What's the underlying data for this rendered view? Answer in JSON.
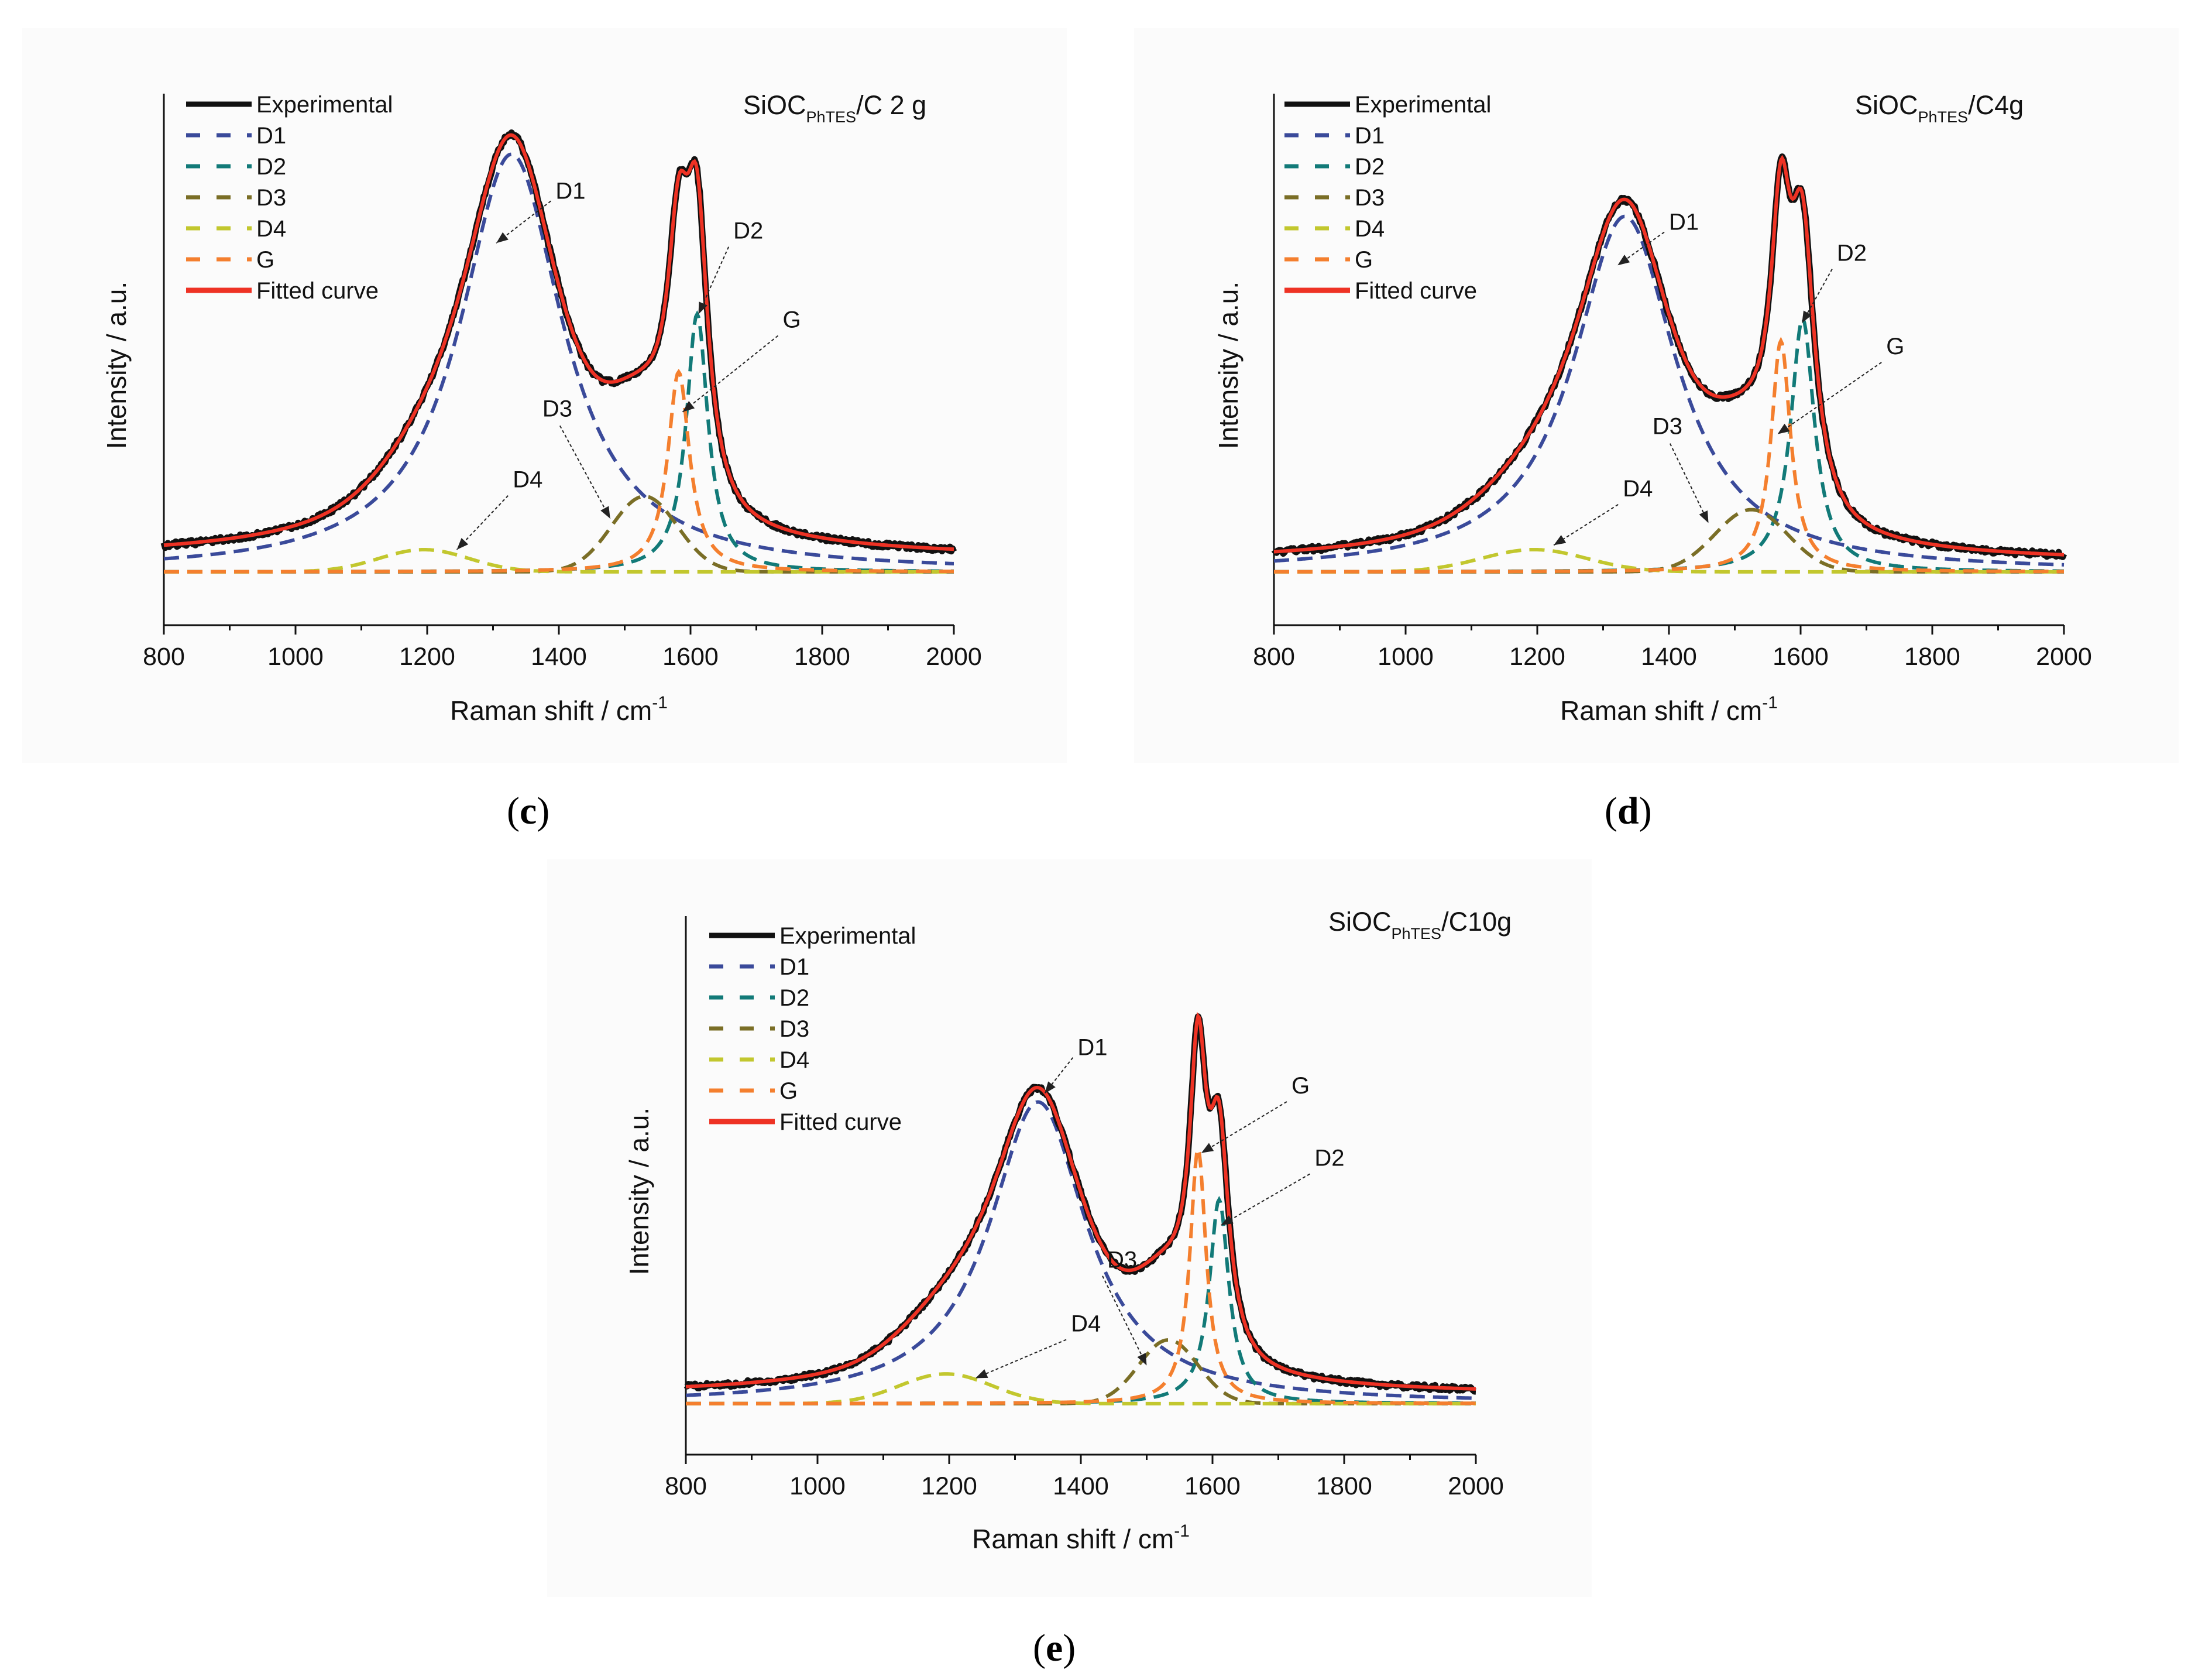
{
  "colors": {
    "Experimental": "#111111",
    "D1": "#3a4a9a",
    "D2": "#127a78",
    "D3": "#7a6e26",
    "D4": "#c2c72e",
    "G": "#f47f2e",
    "Fitted curve": "#ee3224"
  },
  "captions": {
    "c": "c",
    "d": "d",
    "e": "e"
  },
  "chart_data": [
    {
      "panel": "c",
      "type": "line",
      "title": "SiOC",
      "title_sub": "PhTES",
      "title_suffix": "/C 2 g",
      "xlabel": "Raman shift / cm",
      "xlabel_sup": "-1",
      "ylabel": "Intensity / a.u.",
      "xlim": [
        800,
        2000
      ],
      "ylim": [
        -0.12,
        1.05
      ],
      "xticks": [
        800,
        1000,
        1200,
        1400,
        1600,
        1800,
        2000
      ],
      "xtick_labels": [
        "800",
        "1000",
        "1200",
        "1400",
        "1600",
        "1800",
        "2000"
      ],
      "legend": [
        "Experimental",
        "D1",
        "D2",
        "D3",
        "D4",
        "G",
        "Fitted curve"
      ],
      "baseline_fit": 0.03,
      "baseline_comp": 0.0,
      "components": [
        {
          "name": "D1",
          "shape": "lorentz",
          "center": 1328,
          "hwhm": 95,
          "amp": 0.94
        },
        {
          "name": "D2",
          "shape": "lorentz",
          "center": 1610,
          "hwhm": 20,
          "amp": 0.58
        },
        {
          "name": "D3",
          "shape": "gauss",
          "center": 1530,
          "sigma": 50,
          "amp": 0.17
        },
        {
          "name": "D4",
          "shape": "gauss",
          "center": 1195,
          "sigma": 68,
          "amp": 0.05
        },
        {
          "name": "G",
          "shape": "lorentz",
          "center": 1582,
          "hwhm": 20,
          "amp": 0.45
        }
      ],
      "annotations": [
        {
          "label": "D1",
          "x": 1395,
          "y": 0.84,
          "tip_x": 1305,
          "tip_y": 0.74,
          "anchor": "start"
        },
        {
          "label": "D2",
          "x": 1665,
          "y": 0.75,
          "tip_x": 1612,
          "tip_y": 0.58,
          "anchor": "end"
        },
        {
          "label": "G",
          "x": 1740,
          "y": 0.55,
          "tip_x": 1588,
          "tip_y": 0.36,
          "anchor": "end"
        },
        {
          "label": "D3",
          "x": 1375,
          "y": 0.35,
          "tip_x": 1478,
          "tip_y": 0.12,
          "anchor": "middle"
        },
        {
          "label": "D4",
          "x": 1330,
          "y": 0.19,
          "tip_x": 1245,
          "tip_y": 0.05,
          "anchor": "end"
        }
      ]
    },
    {
      "panel": "d",
      "type": "line",
      "title": "SiOC",
      "title_sub": "PhTES",
      "title_suffix": "/C4g",
      "xlabel": "Raman shift / cm",
      "xlabel_sup": "-1",
      "ylabel": "Intensity / a.u.",
      "xlim": [
        800,
        2000
      ],
      "ylim": [
        -0.12,
        1.05
      ],
      "xticks": [
        800,
        1000,
        1200,
        1400,
        1600,
        1800,
        2000
      ],
      "xtick_labels": [
        "800",
        "1000",
        "1200",
        "1400",
        "1600",
        "1800",
        "2000"
      ],
      "legend": [
        "Experimental",
        "D1",
        "D2",
        "D3",
        "D4",
        "G",
        "Fitted curve"
      ],
      "baseline_fit": 0.02,
      "baseline_comp": 0.0,
      "components": [
        {
          "name": "D1",
          "shape": "lorentz",
          "center": 1333,
          "hwhm": 95,
          "amp": 0.8
        },
        {
          "name": "D2",
          "shape": "lorentz",
          "center": 1603,
          "hwhm": 22,
          "amp": 0.57
        },
        {
          "name": "D3",
          "shape": "gauss",
          "center": 1525,
          "sigma": 55,
          "amp": 0.14
        },
        {
          "name": "D4",
          "shape": "gauss",
          "center": 1195,
          "sigma": 80,
          "amp": 0.05
        },
        {
          "name": "G",
          "shape": "lorentz",
          "center": 1570,
          "hwhm": 18,
          "amp": 0.52
        }
      ],
      "annotations": [
        {
          "label": "D1",
          "x": 1400,
          "y": 0.77,
          "tip_x": 1322,
          "tip_y": 0.69,
          "anchor": "start"
        },
        {
          "label": "D2",
          "x": 1655,
          "y": 0.7,
          "tip_x": 1602,
          "tip_y": 0.56,
          "anchor": "end"
        },
        {
          "label": "G",
          "x": 1730,
          "y": 0.49,
          "tip_x": 1565,
          "tip_y": 0.31,
          "anchor": "end"
        },
        {
          "label": "D3",
          "x": 1375,
          "y": 0.31,
          "tip_x": 1460,
          "tip_y": 0.11,
          "anchor": "middle"
        },
        {
          "label": "D4",
          "x": 1330,
          "y": 0.17,
          "tip_x": 1225,
          "tip_y": 0.06,
          "anchor": "end"
        }
      ]
    },
    {
      "panel": "e",
      "type": "line",
      "title": "SiOC",
      "title_sub": "PhTES",
      "title_suffix": "/C10g",
      "xlabel": "Raman shift / cm",
      "xlabel_sup": "-1",
      "ylabel": "Intensity / a.u.",
      "xlim": [
        800,
        2000
      ],
      "ylim": [
        -0.12,
        1.12
      ],
      "xticks": [
        800,
        1000,
        1200,
        1400,
        1600,
        1800,
        2000
      ],
      "xtick_labels": [
        "800",
        "1000",
        "1200",
        "1400",
        "1600",
        "1800",
        "2000"
      ],
      "legend": [
        "Experimental",
        "D1",
        "D2",
        "D3",
        "D4",
        "G",
        "Fitted curve"
      ],
      "baseline_fit": 0.02,
      "baseline_comp": 0.0,
      "components": [
        {
          "name": "D1",
          "shape": "lorentz",
          "center": 1335,
          "hwhm": 90,
          "amp": 0.71
        },
        {
          "name": "D2",
          "shape": "lorentz",
          "center": 1610,
          "hwhm": 18,
          "amp": 0.48
        },
        {
          "name": "D3",
          "shape": "gauss",
          "center": 1533,
          "sigma": 45,
          "amp": 0.15
        },
        {
          "name": "D4",
          "shape": "gauss",
          "center": 1195,
          "sigma": 70,
          "amp": 0.07
        },
        {
          "name": "G",
          "shape": "lorentz",
          "center": 1578,
          "hwhm": 15,
          "amp": 0.6
        }
      ],
      "annotations": [
        {
          "label": "D1",
          "x": 1395,
          "y": 0.82,
          "tip_x": 1345,
          "tip_y": 0.73,
          "anchor": "start"
        },
        {
          "label": "G",
          "x": 1720,
          "y": 0.73,
          "tip_x": 1583,
          "tip_y": 0.59,
          "anchor": "end"
        },
        {
          "label": "D2",
          "x": 1755,
          "y": 0.56,
          "tip_x": 1613,
          "tip_y": 0.42,
          "anchor": "end"
        },
        {
          "label": "D3",
          "x": 1440,
          "y": 0.32,
          "tip_x": 1500,
          "tip_y": 0.09,
          "anchor": "end"
        },
        {
          "label": "D4",
          "x": 1385,
          "y": 0.17,
          "tip_x": 1240,
          "tip_y": 0.06,
          "anchor": "end"
        }
      ]
    }
  ]
}
